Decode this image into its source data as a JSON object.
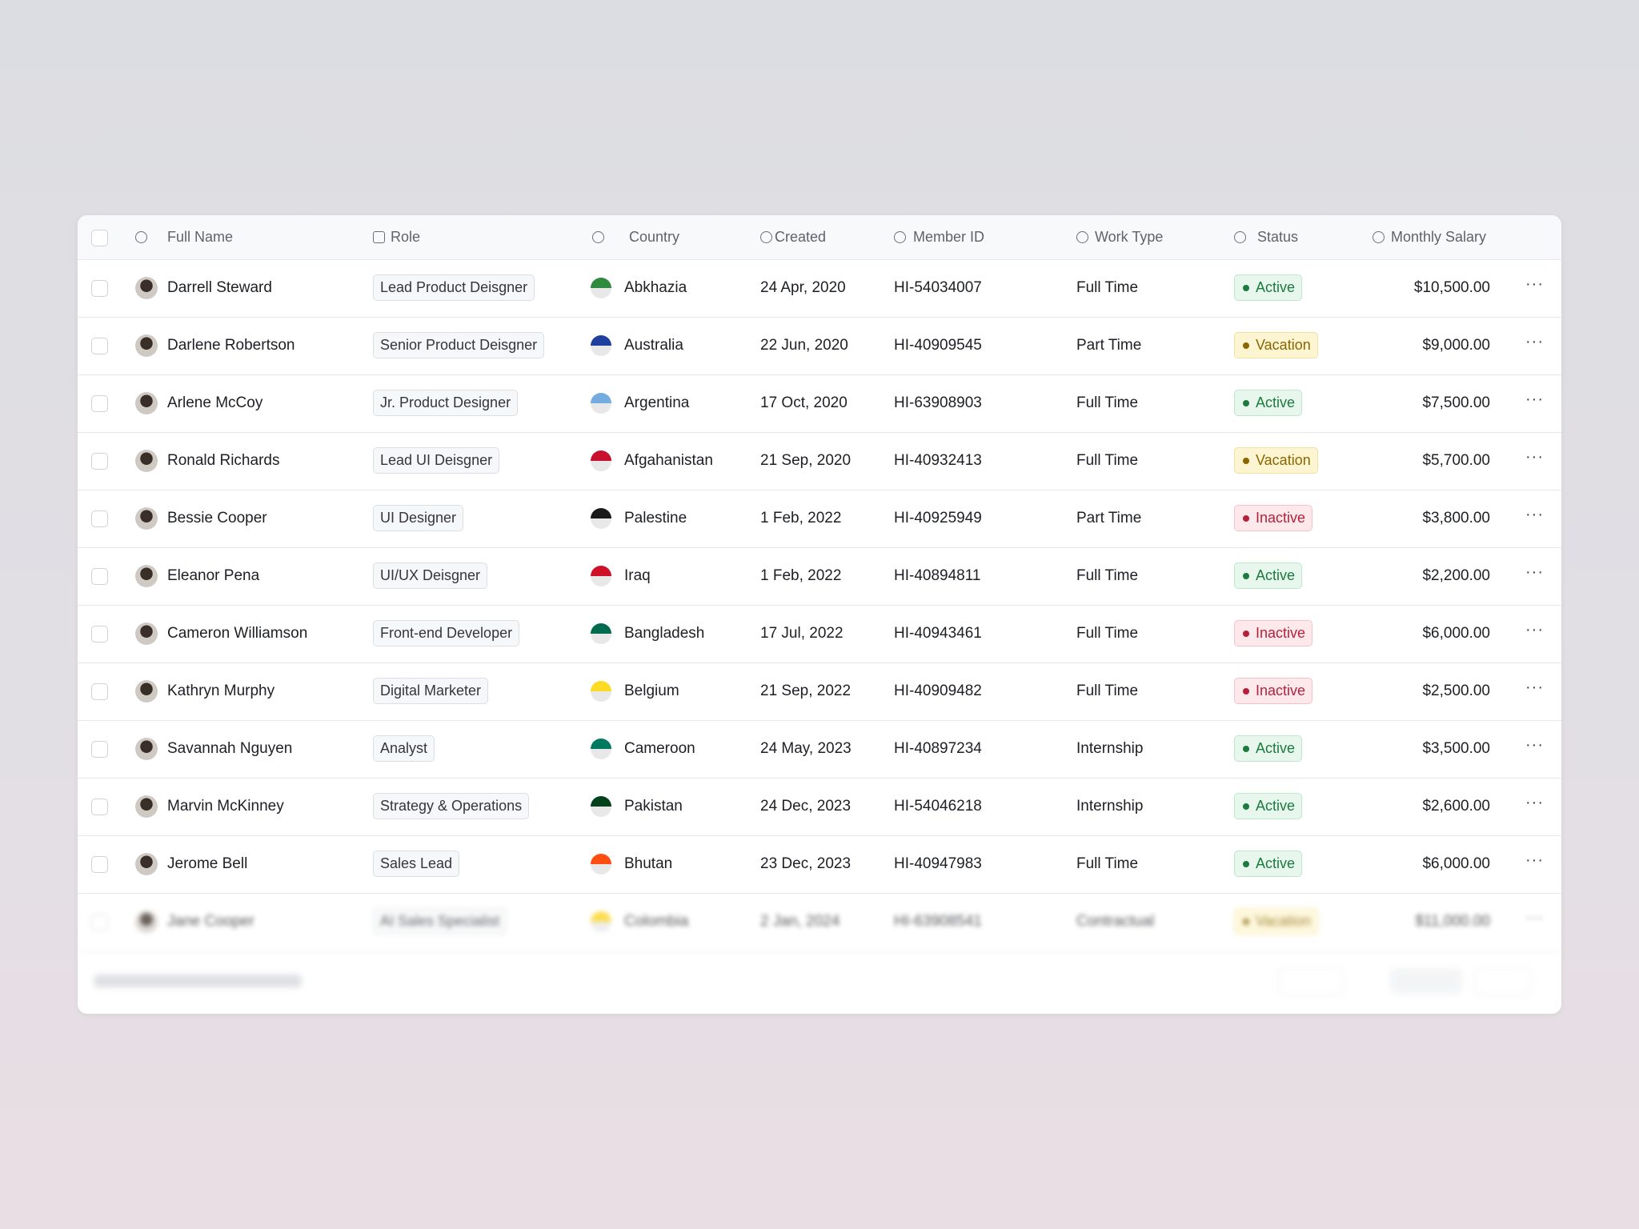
{
  "table": {
    "columns": [
      "Full Name",
      "Role",
      "Country",
      "Created",
      "Member ID",
      "Work Type",
      "Status",
      "Monthly Salary"
    ],
    "rows": [
      {
        "name": "Darrell Steward",
        "role": "Lead Product Deisgner",
        "country": "Abkhazia",
        "created": "24 Apr, 2020",
        "member_id": "HI-54034007",
        "work_type": "Full Time",
        "status": "Active",
        "salary": "$10,500.00"
      },
      {
        "name": "Darlene Robertson",
        "role": "Senior Product Deisgner",
        "country": "Australia",
        "created": "22 Jun, 2020",
        "member_id": "HI-40909545",
        "work_type": "Part Time",
        "status": "Vacation",
        "salary": "$9,000.00"
      },
      {
        "name": "Arlene McCoy",
        "role": "Jr. Product Designer",
        "country": "Argentina",
        "created": "17 Oct, 2020",
        "member_id": "HI-63908903",
        "work_type": "Full Time",
        "status": "Active",
        "salary": "$7,500.00"
      },
      {
        "name": "Ronald Richards",
        "role": "Lead UI Deisgner",
        "country": "Afgahanistan",
        "created": "21 Sep, 2020",
        "member_id": "HI-40932413",
        "work_type": "Full Time",
        "status": "Vacation",
        "salary": "$5,700.00"
      },
      {
        "name": "Bessie Cooper",
        "role": "UI Designer",
        "country": "Palestine",
        "created": "1 Feb, 2022",
        "member_id": "HI-40925949",
        "work_type": "Part Time",
        "status": "Inactive",
        "salary": "$3,800.00"
      },
      {
        "name": "Eleanor Pena",
        "role": "UI/UX Deisgner",
        "country": "Iraq",
        "created": "1 Feb, 2022",
        "member_id": "HI-40894811",
        "work_type": "Full Time",
        "status": "Active",
        "salary": "$2,200.00"
      },
      {
        "name": "Cameron Williamson",
        "role": "Front-end Developer",
        "country": "Bangladesh",
        "created": "17 Jul, 2022",
        "member_id": "HI-40943461",
        "work_type": "Full Time",
        "status": "Inactive",
        "salary": "$6,000.00"
      },
      {
        "name": "Kathryn Murphy",
        "role": "Digital Marketer",
        "country": "Belgium",
        "created": "21 Sep, 2022",
        "member_id": "HI-40909482",
        "work_type": "Full Time",
        "status": "Inactive",
        "salary": "$2,500.00"
      },
      {
        "name": "Savannah Nguyen",
        "role": "Analyst",
        "country": "Cameroon",
        "created": "24 May, 2023",
        "member_id": "HI-40897234",
        "work_type": "Internship",
        "status": "Active",
        "salary": "$3,500.00"
      },
      {
        "name": "Marvin McKinney",
        "role": "Strategy & Operations",
        "country": "Pakistan",
        "created": "24 Dec, 2023",
        "member_id": "HI-54046218",
        "work_type": "Internship",
        "status": "Active",
        "salary": "$2,600.00"
      },
      {
        "name": "Jerome Bell",
        "role": "Sales Lead",
        "country": "Bhutan",
        "created": "23 Dec, 2023",
        "member_id": "HI-40947983",
        "work_type": "Full Time",
        "status": "Active",
        "salary": "$6,000.00"
      },
      {
        "name": "Jane Cooper",
        "role": "AI Sales Specialist",
        "country": "Colombia",
        "created": "2 Jan, 2024",
        "member_id": "HI-63908541",
        "work_type": "Contractual",
        "status": "Vacation",
        "salary": "$11,000.00"
      }
    ]
  }
}
